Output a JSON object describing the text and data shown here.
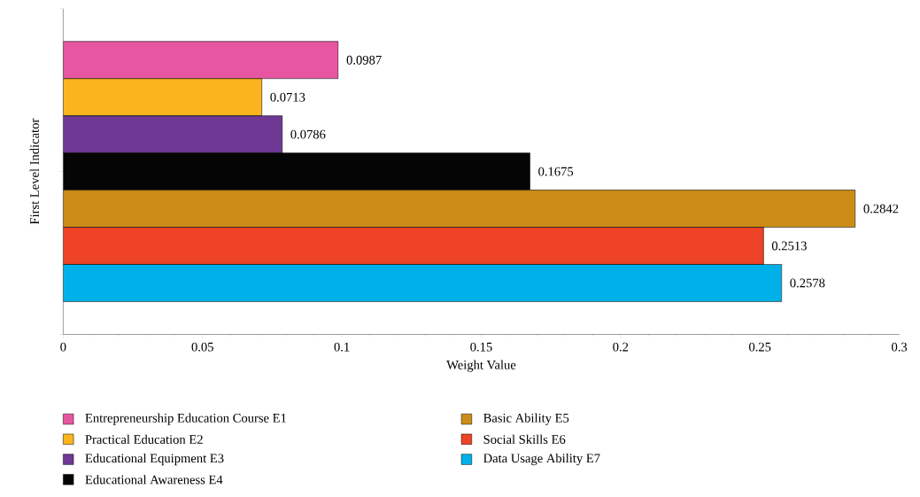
{
  "chart_data": {
    "type": "bar",
    "orientation": "horizontal",
    "xlabel": "Weight Value",
    "ylabel": "First Level Indicator",
    "categories": [
      null
    ],
    "xlim": [
      0,
      0.3
    ],
    "xticks": [
      0,
      0.05,
      0.1,
      0.15,
      0.2,
      0.25,
      0.3
    ],
    "legend": "bottom",
    "grid": false,
    "series": [
      {
        "name": "Entrepreneurship Education Course E1",
        "color": "#e756a1",
        "values": [
          0.0987
        ],
        "value_labels": [
          "0.0987"
        ]
      },
      {
        "name": "Practical Education E2",
        "color": "#fbb41d",
        "values": [
          0.0713
        ],
        "value_labels": [
          "0.0713"
        ]
      },
      {
        "name": "Educational Equipment E3",
        "color": "#6f3894",
        "values": [
          0.0786
        ],
        "value_labels": [
          "0.0786"
        ]
      },
      {
        "name": "Educational Awareness E4",
        "color": "#050505",
        "values": [
          0.1675
        ],
        "value_labels": [
          "0.1675"
        ]
      },
      {
        "name": "Basic Ability E5",
        "color": "#cc8c17",
        "values": [
          0.2842
        ],
        "value_labels": [
          "0.2842"
        ]
      },
      {
        "name": "Social Skills E6",
        "color": "#ee4326",
        "values": [
          0.2513
        ],
        "value_labels": [
          "0.2513"
        ]
      },
      {
        "name": "Data Usage Ability E7",
        "color": "#00b1e9",
        "values": [
          0.2578
        ],
        "value_labels": [
          "0.2578"
        ]
      }
    ]
  }
}
